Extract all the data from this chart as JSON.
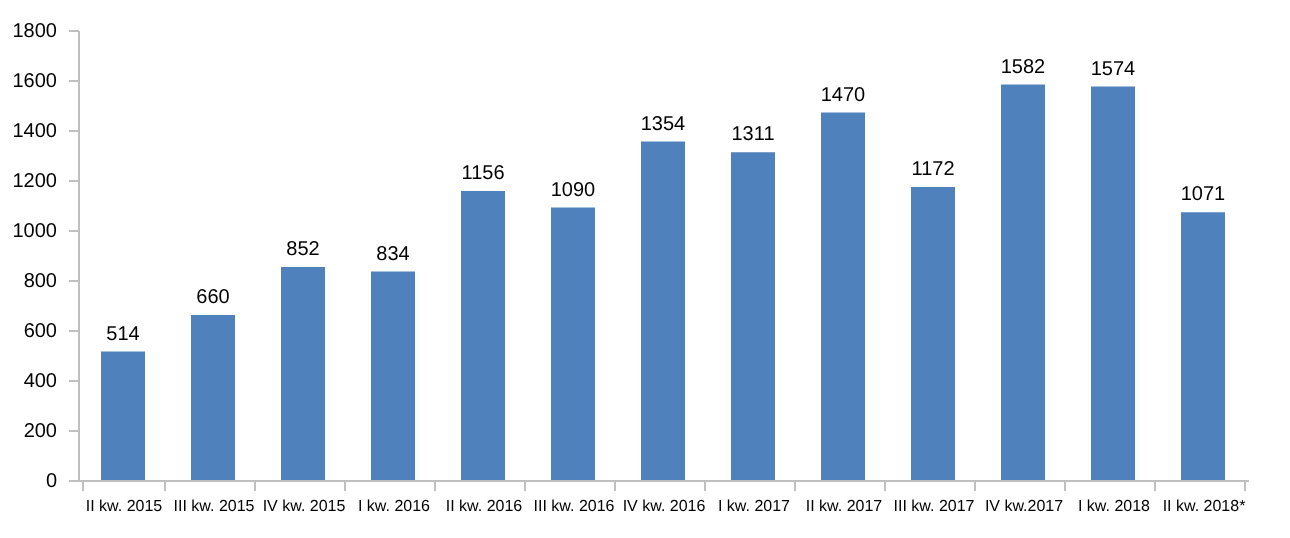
{
  "chart_data": {
    "type": "bar",
    "categories": [
      "II kw. 2015",
      "III kw. 2015",
      "IV kw. 2015",
      "I kw. 2016",
      "II kw. 2016",
      "III kw. 2016",
      "IV kw. 2016",
      "I kw. 2017",
      "II kw. 2017",
      "III kw. 2017",
      "IV kw.2017",
      "I kw. 2018",
      "II kw. 2018*"
    ],
    "values": [
      514,
      660,
      852,
      834,
      1156,
      1090,
      1354,
      1311,
      1470,
      1172,
      1582,
      1574,
      1071
    ],
    "color": "#4f81bd",
    "ylim": [
      0,
      1800
    ],
    "yticks": [
      0,
      200,
      400,
      600,
      800,
      1000,
      1200,
      1400,
      1600,
      1800
    ],
    "grid": false,
    "data_labels": true
  }
}
